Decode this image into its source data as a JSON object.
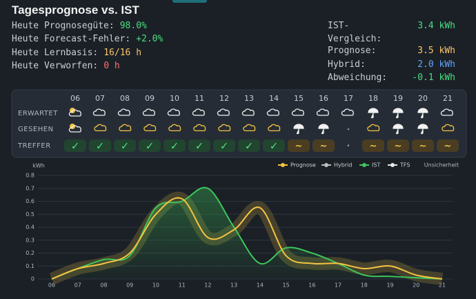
{
  "header": {
    "title": "Tagesprognose vs. IST"
  },
  "stats_left": [
    {
      "label": "Heute Prognosegüte:",
      "value": "98.0%",
      "color": "#4ade80"
    },
    {
      "label": "Heute Forecast-Fehler:",
      "value": "+2.0%",
      "color": "#4ade80"
    },
    {
      "label": "Heute Lernbasis:",
      "value": "16/16 h",
      "color": "#fbc56a"
    },
    {
      "label": "Heute Verworfen:",
      "value": "0 h",
      "color": "#f87171"
    }
  ],
  "stats_right": [
    {
      "label": "IST-Vergleich:",
      "value": "3.4 kWh",
      "color": "#4ade80"
    },
    {
      "label": "Prognose:",
      "value": "3.5 kWh",
      "color": "#fbc56a"
    },
    {
      "label": "Hybrid:",
      "value": "2.0 kWh",
      "color": "#60a5fa"
    },
    {
      "label": "Abweichung:",
      "value": "-0.1 kWh",
      "color": "#4ade80"
    }
  ],
  "weather": {
    "hours": [
      "06",
      "07",
      "08",
      "09",
      "10",
      "11",
      "12",
      "13",
      "14",
      "15",
      "16",
      "17",
      "18",
      "19",
      "20",
      "21"
    ],
    "rows": [
      "ERWARTET",
      "GESEHEN",
      "TREFFER"
    ],
    "hits": [
      "✓",
      "✓",
      "✓",
      "✓",
      "✓",
      "✓",
      "✓",
      "✓",
      "✓",
      "~",
      "~",
      "·",
      "~",
      "~",
      "~",
      "~"
    ]
  },
  "chart_data": {
    "type": "line",
    "unit_label": "kWh",
    "uncertainty_label": "Unsicherheit",
    "categories": [
      "06",
      "07",
      "08",
      "09",
      "10",
      "11",
      "12",
      "13",
      "14",
      "15",
      "16",
      "17",
      "18",
      "19",
      "20",
      "21"
    ],
    "ylim": [
      0,
      0.8
    ],
    "yticks": [
      0,
      0.1,
      0.2,
      0.3,
      0.4,
      0.5,
      0.6,
      0.7,
      0.8
    ],
    "series": [
      {
        "name": "Prognose",
        "color": "#f6c343",
        "values": [
          0,
          0.08,
          0.12,
          0.2,
          0.5,
          0.62,
          0.32,
          0.38,
          0.55,
          0.18,
          0.12,
          0.12,
          0.08,
          0.1,
          0.03,
          0
        ]
      },
      {
        "name": "Hybrid",
        "color": "#bdbdbd"
      },
      {
        "name": "IST",
        "color": "#3cc75a",
        "values": [
          0,
          0.08,
          0.15,
          0.18,
          0.55,
          0.6,
          0.7,
          0.4,
          0.12,
          0.24,
          0.2,
          0.12,
          0.03,
          0.02,
          0.01,
          0
        ]
      },
      {
        "name": "TFS",
        "color": "#e8e8e8"
      }
    ]
  }
}
